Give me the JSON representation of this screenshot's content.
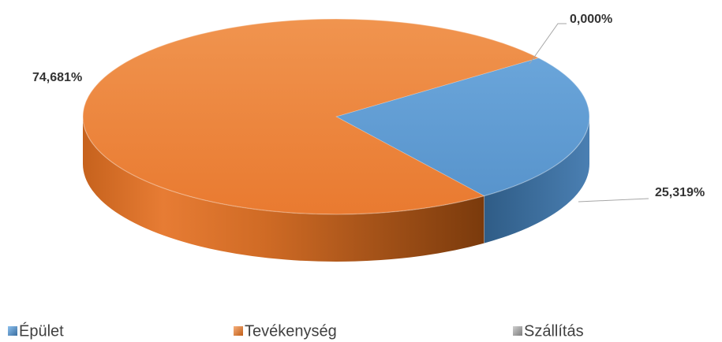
{
  "chart_data": {
    "type": "pie",
    "style": "3d",
    "categories": [
      "Épület",
      "Tevékenység",
      "Szállítás"
    ],
    "values": [
      25.319,
      74.681,
      0.0
    ],
    "data_labels": [
      "25,319%",
      "74,681%",
      "0,000%"
    ],
    "colors": [
      "#5b9bd5",
      "#ed7d31",
      "#a5a5a5"
    ],
    "legend_position": "bottom",
    "title": ""
  }
}
